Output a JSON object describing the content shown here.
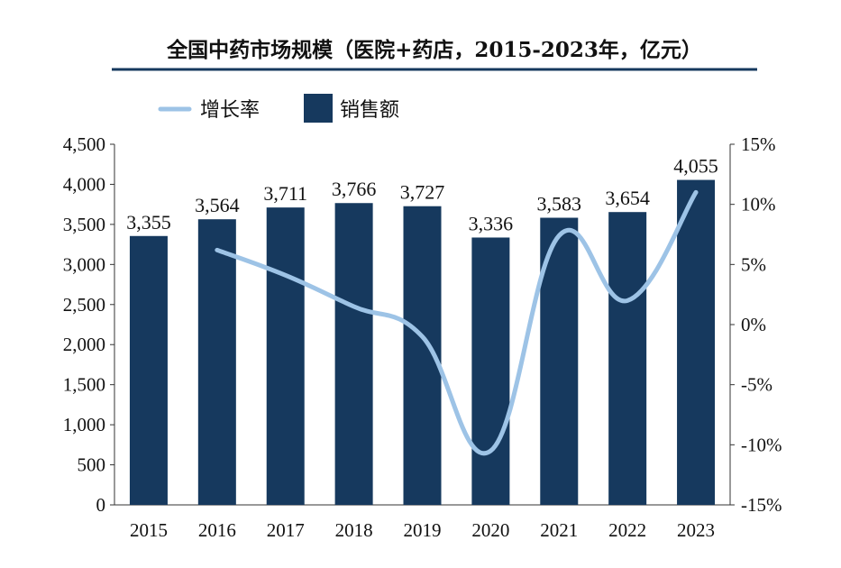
{
  "chart_data": {
    "type": "bar+line",
    "title": "全国中药市场规模（医院+药店，2015-2023年，亿元）",
    "categories": [
      "2015",
      "2016",
      "2017",
      "2018",
      "2019",
      "2020",
      "2021",
      "2022",
      "2023"
    ],
    "series": [
      {
        "name": "销售额",
        "type": "bar",
        "axis": "left",
        "color": "#16395E",
        "values": [
          3355,
          3564,
          3711,
          3766,
          3727,
          3336,
          3583,
          3654,
          4055
        ],
        "labels": [
          "3,355",
          "3,564",
          "3,711",
          "3,766",
          "3,727",
          "3,336",
          "3,583",
          "3,654",
          "4,055"
        ]
      },
      {
        "name": "增长率",
        "type": "line",
        "axis": "right",
        "color": "#9DC3E6",
        "values": [
          null,
          6.2,
          4.1,
          1.5,
          -1.0,
          -10.5,
          7.4,
          2.0,
          11.0
        ]
      }
    ],
    "left_axis": {
      "ylim": [
        0,
        4500
      ],
      "ticks": [
        "0",
        "500",
        "1,000",
        "1,500",
        "2,000",
        "2,500",
        "3,000",
        "3,500",
        "4,000",
        "4,500"
      ]
    },
    "right_axis": {
      "ylim": [
        -15,
        15
      ],
      "ticks": [
        "-15%",
        "-10%",
        "-5%",
        "0%",
        "5%",
        "10%",
        "15%"
      ]
    },
    "legend_position": "top-left",
    "grid": false
  }
}
